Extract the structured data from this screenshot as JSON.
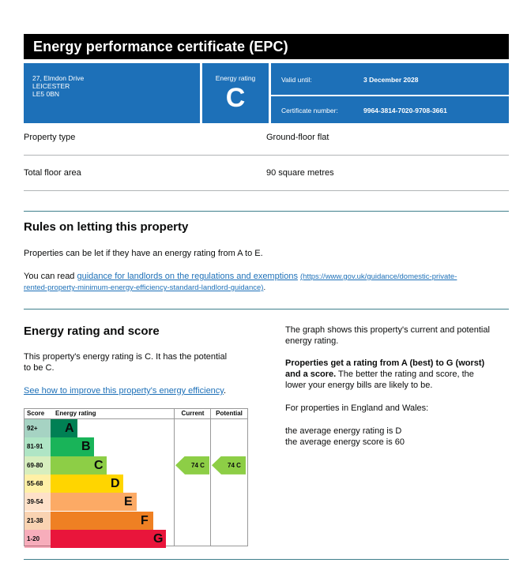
{
  "title": "Energy performance certificate (EPC)",
  "address": [
    "27, Elmdon Drive",
    "LEICESTER",
    "LE5 0BN"
  ],
  "rating_box": {
    "label": "Energy rating",
    "letter": "C"
  },
  "valid": {
    "label": "Valid until:",
    "value": "3 December 2028"
  },
  "certificate": {
    "label": "Certificate number:",
    "value": "9964-3814-7020-9708-3661"
  },
  "property": [
    {
      "label": "Property type",
      "value": "Ground-floor flat"
    },
    {
      "label": "Total floor area",
      "value": "90 square metres"
    }
  ],
  "letting": {
    "heading": "Rules on letting this property",
    "para1": "Properties can be let if they have an energy rating from A to E.",
    "para2_prefix": "You can read ",
    "para2_link": "guidance for landlords on the regulations and exemptions",
    "para2_url_line1": "(https://www.gov.uk/guidance/domestic-private-",
    "para2_url_line2": "rented-property-minimum-energy-efficiency-standard-landlord-guidance)",
    "para2_suffix": "."
  },
  "score": {
    "heading": "Energy rating and score",
    "para_line1": "This property's energy rating is C. It has the potential",
    "para_line2": "to be C.",
    "link": "See how to improve this property's energy efficiency",
    "link_suffix": "."
  },
  "right_text": {
    "p1_line1": "The graph shows this property's current and potential",
    "p1_line2": "energy rating.",
    "p2_bold_line1": "Properties get a rating from A (best) to G (worst)",
    "p2_bold_line2": "and a score.",
    "p2_rest_line1": " The better the rating and score, the",
    "p2_rest_line2": "lower your energy bills are likely to be.",
    "p3": "For properties in England and Wales:",
    "p4_line1": "the average energy rating is D",
    "p4_line2": "the average energy score is 60"
  },
  "chart_data": {
    "type": "table",
    "headers": {
      "score": "Score",
      "rating": "Energy rating",
      "current": "Current",
      "potential": "Potential"
    },
    "bands": [
      {
        "score": "92+",
        "letter": "A",
        "color": "#008054"
      },
      {
        "score": "81-91",
        "letter": "B",
        "color": "#19b459"
      },
      {
        "score": "69-80",
        "letter": "C",
        "color": "#8dce46"
      },
      {
        "score": "55-68",
        "letter": "D",
        "color": "#ffd500"
      },
      {
        "score": "39-54",
        "letter": "E",
        "color": "#fcaa65"
      },
      {
        "score": "21-38",
        "letter": "F",
        "color": "#ef8023"
      },
      {
        "score": "1-20",
        "letter": "G",
        "color": "#e9153b"
      }
    ],
    "current": {
      "score": 74,
      "letter": "C",
      "label": "74 C"
    },
    "potential": {
      "score": 74,
      "letter": "C",
      "label": "74 C"
    }
  }
}
